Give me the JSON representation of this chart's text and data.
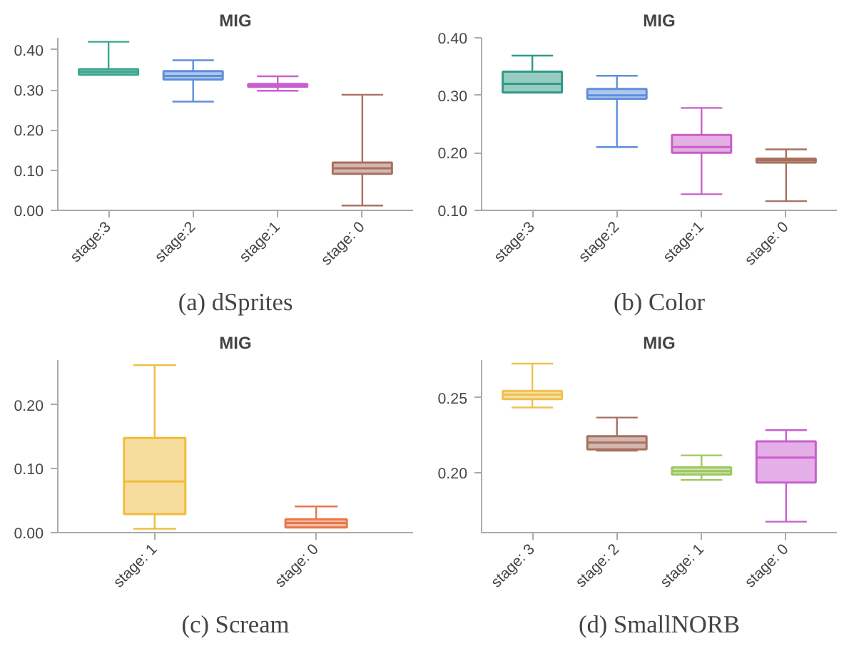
{
  "chart_data": [
    {
      "type": "box",
      "title": "MIG",
      "annotations": [
        "(a) dSprites"
      ],
      "categories": [
        "stage:3",
        "stage:2",
        "stage:1",
        "stage: 0"
      ],
      "colors": [
        "#3aa58e",
        "#5f8fdc",
        "#c95fd0",
        "#a87060"
      ],
      "boxes": [
        {
          "low": 0.338,
          "q1": 0.338,
          "median": 0.345,
          "q3": 0.352,
          "high": 0.42
        },
        {
          "low": 0.271,
          "q1": 0.326,
          "median": 0.335,
          "q3": 0.347,
          "high": 0.374
        },
        {
          "low": 0.298,
          "q1": 0.308,
          "median": 0.311,
          "q3": 0.315,
          "high": 0.334
        },
        {
          "low": 0.012,
          "q1": 0.091,
          "median": 0.105,
          "q3": 0.119,
          "high": 0.288
        }
      ],
      "ylim": [
        0,
        0.43
      ],
      "yticks": [
        {
          "value": 0,
          "label": "0.00"
        },
        {
          "value": 0.1,
          "label": "0.10"
        },
        {
          "value": 0.2,
          "label": "0.20"
        },
        {
          "value": 0.3,
          "label": "0.30"
        },
        {
          "value": 0.4,
          "label": "0.40"
        }
      ],
      "grid": false
    },
    {
      "type": "box",
      "title": "MIG",
      "annotations": [
        "(b) Color"
      ],
      "categories": [
        "stage:3",
        "stage:2",
        "stage:1",
        "stage: 0"
      ],
      "colors": [
        "#2f9a85",
        "#5f8fdc",
        "#c95fc8",
        "#a87060"
      ],
      "boxes": [
        {
          "low": 0.305,
          "q1": 0.305,
          "median": 0.32,
          "q3": 0.341,
          "high": 0.369
        },
        {
          "low": 0.21,
          "q1": 0.294,
          "median": 0.3,
          "q3": 0.311,
          "high": 0.334
        },
        {
          "low": 0.128,
          "q1": 0.2,
          "median": 0.21,
          "q3": 0.231,
          "high": 0.278
        },
        {
          "low": 0.116,
          "q1": 0.183,
          "median": 0.187,
          "q3": 0.19,
          "high": 0.206
        }
      ],
      "ylim": [
        0.1,
        0.4
      ],
      "yticks": [
        {
          "value": 0.1,
          "label": "0.10"
        },
        {
          "value": 0.2,
          "label": "0.20"
        },
        {
          "value": 0.3,
          "label": "0.30"
        },
        {
          "value": 0.4,
          "label": "0.40"
        }
      ],
      "grid": false
    },
    {
      "type": "box",
      "title": "MIG",
      "annotations": [
        "(c) Scream"
      ],
      "categories": [
        "stage: 1",
        "stage: 0"
      ],
      "colors": [
        "#f0bc3c",
        "#e8784a"
      ],
      "boxes": [
        {
          "low": 0.006,
          "q1": 0.029,
          "median": 0.08,
          "q3": 0.148,
          "high": 0.262
        },
        {
          "low": 0.008,
          "q1": 0.008,
          "median": 0.015,
          "q3": 0.021,
          "high": 0.041
        }
      ],
      "ylim": [
        0,
        0.27
      ],
      "yticks": [
        {
          "value": 0,
          "label": "0.00"
        },
        {
          "value": 0.1,
          "label": "0.10"
        },
        {
          "value": 0.2,
          "label": "0.20"
        }
      ],
      "grid": false
    },
    {
      "type": "box",
      "title": "MIG",
      "annotations": [
        "(d) SmallNORB"
      ],
      "categories": [
        "stage: 3",
        "stage: 2",
        "stage: 1",
        "stage: 0"
      ],
      "colors": [
        "#f0c050",
        "#a87060",
        "#9cc860",
        "#c95fd0"
      ],
      "boxes": [
        {
          "low": 0.2434,
          "q1": 0.249,
          "median": 0.252,
          "q3": 0.2544,
          "high": 0.2726
        },
        {
          "low": 0.2146,
          "q1": 0.2155,
          "median": 0.22,
          "q3": 0.2243,
          "high": 0.2367
        },
        {
          "low": 0.1951,
          "q1": 0.1987,
          "median": 0.201,
          "q3": 0.2035,
          "high": 0.2115
        },
        {
          "low": 0.1673,
          "q1": 0.1934,
          "median": 0.21,
          "q3": 0.2208,
          "high": 0.2283
        }
      ],
      "ylim": [
        0.16,
        0.275
      ],
      "yticks": [
        {
          "value": 0.2,
          "label": "0.20"
        },
        {
          "value": 0.25,
          "label": "0.25"
        }
      ],
      "grid": false
    }
  ]
}
